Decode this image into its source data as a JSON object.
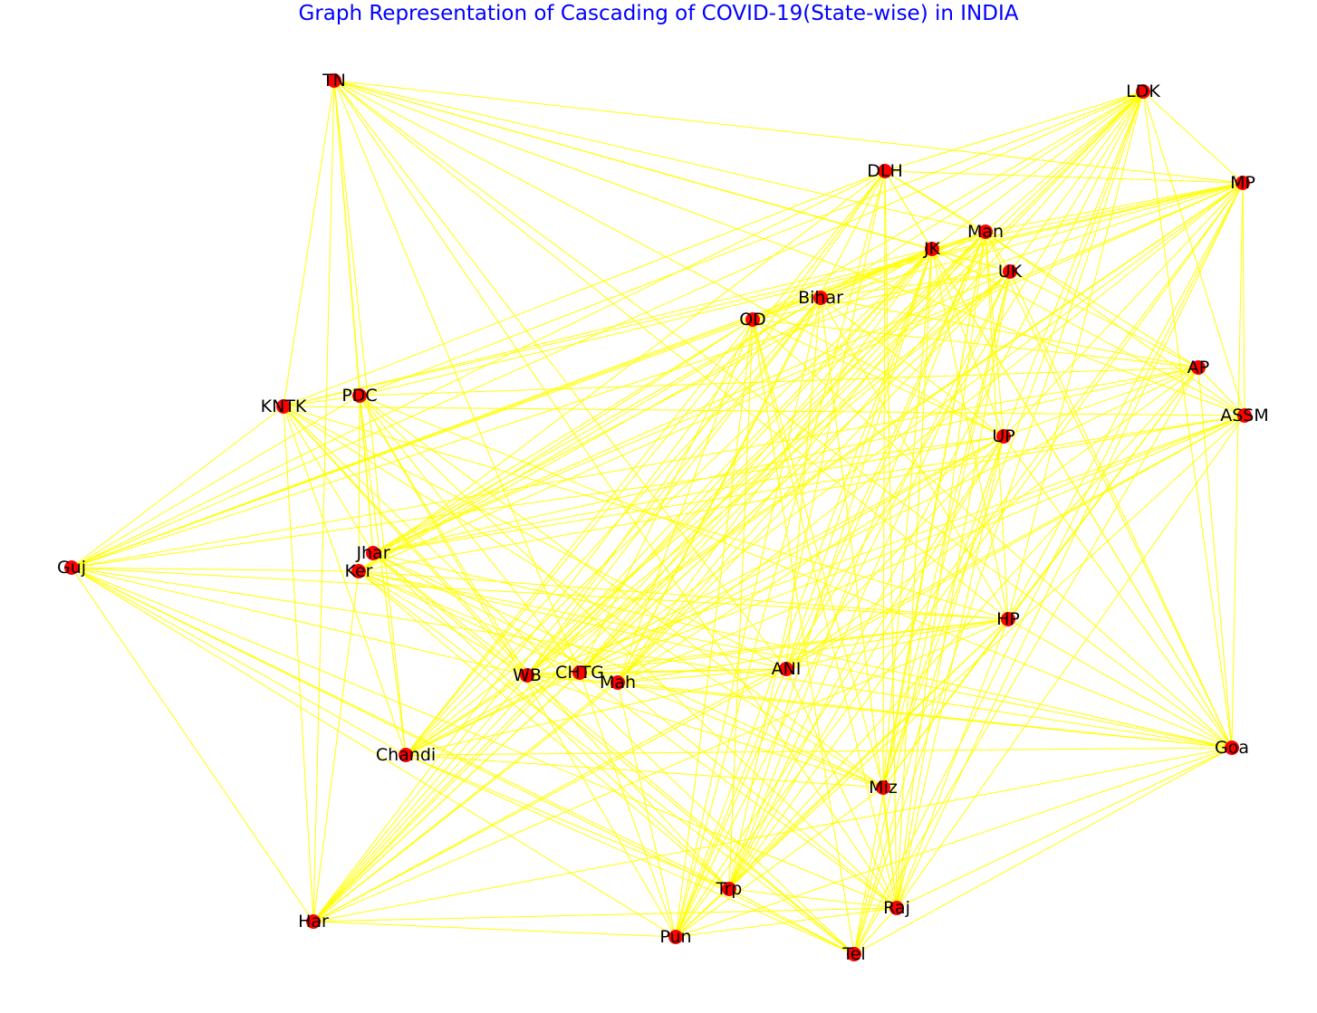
{
  "title": "Graph Representation of Cascading of COVID-19(State-wise) in INDIA",
  "colors": {
    "title": "#0000ff",
    "edge": "#ffff00",
    "node": "#ff0000",
    "label": "#000000"
  },
  "nodes": [
    {
      "id": "TN",
      "label": "TN"
    },
    {
      "id": "LDK",
      "label": "LDK"
    },
    {
      "id": "DLH",
      "label": "DLH"
    },
    {
      "id": "MP",
      "label": "MP"
    },
    {
      "id": "Man",
      "label": "Man"
    },
    {
      "id": "JK",
      "label": "JK"
    },
    {
      "id": "UK",
      "label": "UK"
    },
    {
      "id": "Bihar",
      "label": "Bihar"
    },
    {
      "id": "OD",
      "label": "OD"
    },
    {
      "id": "AP",
      "label": "AP"
    },
    {
      "id": "KNTK",
      "label": "KNTK"
    },
    {
      "id": "PDC",
      "label": "PDC"
    },
    {
      "id": "ASSM",
      "label": "ASSM"
    },
    {
      "id": "UP",
      "label": "UP"
    },
    {
      "id": "Guj",
      "label": "Guj"
    },
    {
      "id": "Jhar",
      "label": "Jhar"
    },
    {
      "id": "Ker",
      "label": "Ker"
    },
    {
      "id": "HP",
      "label": "HP"
    },
    {
      "id": "WB",
      "label": "WB"
    },
    {
      "id": "CHTG",
      "label": "CHTG"
    },
    {
      "id": "Mah",
      "label": "Mah"
    },
    {
      "id": "ANI",
      "label": "ANI"
    },
    {
      "id": "Goa",
      "label": "Goa"
    },
    {
      "id": "Chandi",
      "label": "Chandi"
    },
    {
      "id": "Miz",
      "label": "Miz"
    },
    {
      "id": "Trp",
      "label": "Trp"
    },
    {
      "id": "Raj",
      "label": "Raj"
    },
    {
      "id": "Har",
      "label": "Har"
    },
    {
      "id": "Pun",
      "label": "Pun"
    },
    {
      "id": "Tel",
      "label": "Tel"
    }
  ]
}
